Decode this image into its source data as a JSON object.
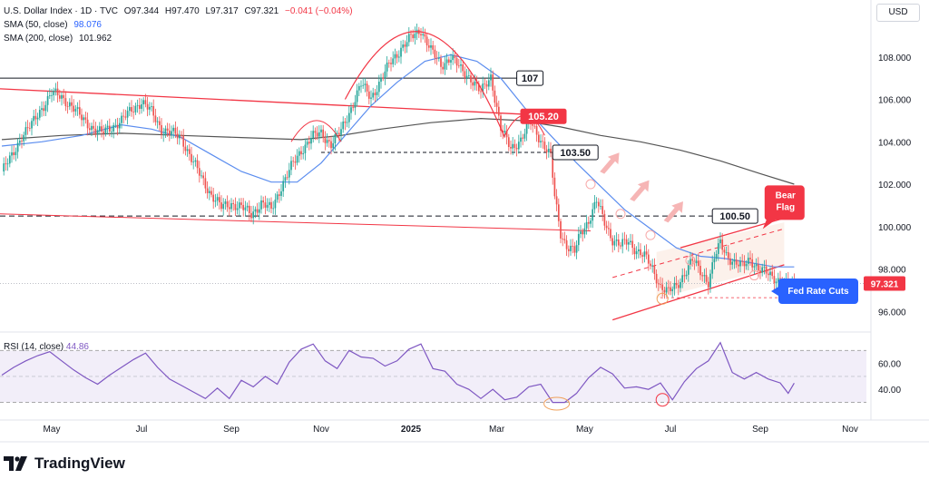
{
  "header": {
    "symbol": "U.S. Dollar Index · 1D · TVC",
    "open": "O97.344",
    "high": "H97.470",
    "low": "L97.317",
    "close": "C97.321",
    "change": "−0.041 (−0.04%)",
    "sma50_label": "SMA (50, close)",
    "sma50_value": "98.076",
    "sma200_label": "SMA (200, close)",
    "sma200_value": "101.962",
    "currency": "USD"
  },
  "rsi": {
    "label": "RSI (14, close)",
    "value": "44.86"
  },
  "brand": {
    "name": "TradingView"
  },
  "colors": {
    "up": "#26a69a",
    "down": "#ef5350",
    "sma50": "#5b8def",
    "sma200": "#555555",
    "red_line": "#f23645",
    "rsi": "#7e57c2",
    "rsi_band": "#ede7f6"
  },
  "chart_data": {
    "type": "candlestick",
    "title": "U.S. Dollar Index",
    "ylim": [
      95.2,
      110.6
    ],
    "price_ticks": [
      "108.000",
      "106.000",
      "104.000",
      "102.000",
      "100.000",
      "98.000",
      "96.000"
    ],
    "price_tick_values": [
      108,
      106,
      104,
      102,
      100,
      98,
      96
    ],
    "x_ticks": [
      "May",
      "Jul",
      "Sep",
      "Nov",
      "2025",
      "Mar",
      "May",
      "Jul",
      "Sep",
      "Nov"
    ],
    "x_tick_index": [
      25,
      70,
      115,
      160,
      205,
      248,
      292,
      335,
      380,
      425
    ],
    "close_path": [
      [
        0,
        102.6
      ],
      [
        5,
        103.3
      ],
      [
        10,
        104.3
      ],
      [
        15,
        104.8
      ],
      [
        20,
        105.6
      ],
      [
        25,
        106.3
      ],
      [
        30,
        106.1
      ],
      [
        35,
        105.7
      ],
      [
        40,
        105.1
      ],
      [
        45,
        104.7
      ],
      [
        50,
        104.4
      ],
      [
        55,
        104.7
      ],
      [
        60,
        105.0
      ],
      [
        65,
        105.5
      ],
      [
        70,
        105.9
      ],
      [
        75,
        105.4
      ],
      [
        80,
        104.6
      ],
      [
        85,
        104.4
      ],
      [
        90,
        104.2
      ],
      [
        95,
        103.2
      ],
      [
        100,
        102.3
      ],
      [
        105,
        101.5
      ],
      [
        110,
        100.9
      ],
      [
        115,
        101.1
      ],
      [
        120,
        100.9
      ],
      [
        125,
        100.6
      ],
      [
        130,
        101.1
      ],
      [
        135,
        100.8
      ],
      [
        140,
        101.9
      ],
      [
        145,
        102.8
      ],
      [
        150,
        103.6
      ],
      [
        155,
        104.2
      ],
      [
        160,
        104.4
      ],
      [
        165,
        103.9
      ],
      [
        170,
        104.5
      ],
      [
        175,
        105.6
      ],
      [
        180,
        106.7
      ],
      [
        185,
        106.1
      ],
      [
        190,
        106.9
      ],
      [
        195,
        107.8
      ],
      [
        200,
        108.4
      ],
      [
        205,
        108.9
      ],
      [
        210,
        109.3
      ],
      [
        215,
        108.3
      ],
      [
        220,
        107.6
      ],
      [
        225,
        108.0
      ],
      [
        230,
        107.4
      ],
      [
        235,
        107.0
      ],
      [
        240,
        106.3
      ],
      [
        245,
        107.1
      ],
      [
        250,
        104.6
      ],
      [
        255,
        103.7
      ],
      [
        260,
        104.1
      ],
      [
        265,
        104.9
      ],
      [
        270,
        104.1
      ],
      [
        275,
        103.3
      ],
      [
        277,
        101.4
      ],
      [
        280,
        99.7
      ],
      [
        283,
        99.1
      ],
      [
        287,
        98.8
      ],
      [
        290,
        99.7
      ],
      [
        294,
        100.3
      ],
      [
        298,
        101.2
      ],
      [
        302,
        100.2
      ],
      [
        306,
        99.4
      ],
      [
        310,
        99.1
      ],
      [
        314,
        99.3
      ],
      [
        318,
        98.9
      ],
      [
        322,
        98.6
      ],
      [
        326,
        98.0
      ],
      [
        330,
        97.2
      ],
      [
        334,
        96.9
      ],
      [
        338,
        97.2
      ],
      [
        342,
        97.8
      ],
      [
        346,
        98.4
      ],
      [
        350,
        97.9
      ],
      [
        354,
        97.4
      ],
      [
        357,
        98.5
      ],
      [
        360,
        99.2
      ],
      [
        363,
        98.7
      ],
      [
        367,
        98.3
      ],
      [
        371,
        98.1
      ],
      [
        375,
        98.5
      ],
      [
        379,
        98.0
      ],
      [
        383,
        97.8
      ],
      [
        387,
        97.6
      ],
      [
        391,
        97.4
      ],
      [
        394,
        97.2
      ],
      [
        397,
        97.3
      ]
    ],
    "sma50_path": [
      [
        0,
        103.8
      ],
      [
        20,
        104.0
      ],
      [
        40,
        104.3
      ],
      [
        60,
        104.8
      ],
      [
        75,
        104.6
      ],
      [
        90,
        104.2
      ],
      [
        105,
        103.4
      ],
      [
        120,
        102.6
      ],
      [
        135,
        102.1
      ],
      [
        148,
        102.1
      ],
      [
        160,
        103.0
      ],
      [
        172,
        104.3
      ],
      [
        185,
        105.7
      ],
      [
        198,
        106.8
      ],
      [
        212,
        107.8
      ],
      [
        225,
        108.1
      ],
      [
        238,
        107.8
      ],
      [
        250,
        107.0
      ],
      [
        262,
        105.6
      ],
      [
        275,
        104.3
      ],
      [
        288,
        103.0
      ],
      [
        300,
        101.9
      ],
      [
        312,
        100.8
      ],
      [
        325,
        99.9
      ],
      [
        338,
        99.0
      ],
      [
        350,
        98.6
      ],
      [
        362,
        98.5
      ],
      [
        375,
        98.3
      ],
      [
        387,
        98.1
      ],
      [
        397,
        98.1
      ]
    ],
    "sma200_path": [
      [
        0,
        104.1
      ],
      [
        30,
        104.3
      ],
      [
        60,
        104.4
      ],
      [
        90,
        104.3
      ],
      [
        120,
        104.2
      ],
      [
        150,
        104.1
      ],
      [
        170,
        104.3
      ],
      [
        190,
        104.6
      ],
      [
        215,
        104.9
      ],
      [
        240,
        105.1
      ],
      [
        260,
        105.0
      ],
      [
        280,
        104.7
      ],
      [
        300,
        104.3
      ],
      [
        320,
        104.0
      ],
      [
        340,
        103.6
      ],
      [
        360,
        103.1
      ],
      [
        380,
        102.5
      ],
      [
        397,
        102.0
      ]
    ],
    "rsi_ylim": [
      22,
      80
    ],
    "rsi_ticks": [
      "60.00",
      "40.00"
    ],
    "rsi_tick_values": [
      60,
      40
    ],
    "rsi_band": [
      30,
      70
    ],
    "rsi_path": [
      [
        0,
        51
      ],
      [
        6,
        57
      ],
      [
        12,
        62
      ],
      [
        18,
        66
      ],
      [
        24,
        69
      ],
      [
        30,
        62
      ],
      [
        36,
        55
      ],
      [
        42,
        49
      ],
      [
        48,
        44
      ],
      [
        54,
        51
      ],
      [
        60,
        57
      ],
      [
        66,
        63
      ],
      [
        72,
        68
      ],
      [
        78,
        57
      ],
      [
        84,
        48
      ],
      [
        90,
        43
      ],
      [
        96,
        38
      ],
      [
        102,
        33
      ],
      [
        108,
        41
      ],
      [
        114,
        33
      ],
      [
        120,
        47
      ],
      [
        126,
        42
      ],
      [
        132,
        50
      ],
      [
        138,
        44
      ],
      [
        144,
        61
      ],
      [
        150,
        71
      ],
      [
        156,
        75
      ],
      [
        162,
        62
      ],
      [
        168,
        56
      ],
      [
        174,
        70
      ],
      [
        180,
        65
      ],
      [
        186,
        64
      ],
      [
        192,
        58
      ],
      [
        198,
        62
      ],
      [
        204,
        71
      ],
      [
        210,
        75
      ],
      [
        216,
        56
      ],
      [
        222,
        54
      ],
      [
        228,
        44
      ],
      [
        234,
        40
      ],
      [
        240,
        33
      ],
      [
        246,
        40
      ],
      [
        252,
        32
      ],
      [
        258,
        34
      ],
      [
        264,
        42
      ],
      [
        270,
        44
      ],
      [
        276,
        30
      ],
      [
        282,
        30
      ],
      [
        288,
        37
      ],
      [
        294,
        49
      ],
      [
        300,
        57
      ],
      [
        306,
        52
      ],
      [
        312,
        41
      ],
      [
        318,
        42
      ],
      [
        324,
        40
      ],
      [
        330,
        45
      ],
      [
        336,
        32
      ],
      [
        342,
        46
      ],
      [
        348,
        56
      ],
      [
        354,
        62
      ],
      [
        360,
        76
      ],
      [
        366,
        53
      ],
      [
        372,
        48
      ],
      [
        378,
        53
      ],
      [
        384,
        48
      ],
      [
        390,
        45
      ],
      [
        394,
        37
      ],
      [
        397,
        44.86
      ]
    ],
    "levels": [
      {
        "label": "107",
        "value": 107,
        "style": "solid-dark"
      },
      {
        "label": "105.20",
        "value": 105.2,
        "style": "red-badge"
      },
      {
        "label": "103.50",
        "value": 103.5,
        "style": "dashed"
      },
      {
        "label": "100.50",
        "value": 100.5,
        "style": "dashed"
      }
    ],
    "current_price": "97.321",
    "annotations": [
      {
        "text": "Bear\nFlag",
        "color": "#f23645"
      },
      {
        "text": "Fed Rate Cuts",
        "color": "#2962ff"
      }
    ],
    "grid": false,
    "legend_position": "top-left"
  }
}
